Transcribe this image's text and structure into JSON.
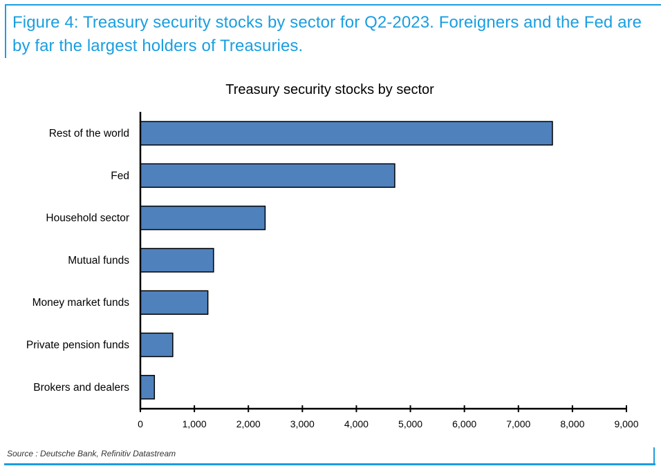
{
  "figure": {
    "caption": "Figure 4: Treasury security stocks by sector for Q2-2023. Foreigners and the Fed are by far the largest holders of Treasuries.",
    "source": "Source : Deutsche Bank, Refinitiv Datastream",
    "accent_color": "#1a9ee0"
  },
  "chart_data": {
    "type": "bar",
    "orientation": "horizontal",
    "title": "Treasury security stocks by sector",
    "xlabel": "",
    "ylabel": "",
    "categories": [
      "Rest of the world",
      "Fed",
      "Household sector",
      "Mutual funds",
      "Money market funds",
      "Private pension funds",
      "Brokers and dealers"
    ],
    "values": [
      7630,
      4710,
      2310,
      1355,
      1250,
      600,
      260
    ],
    "xlim": [
      0,
      9000
    ],
    "x_ticks": [
      "0",
      "1,000",
      "2,000",
      "3,000",
      "4,000",
      "5,000",
      "6,000",
      "7,000",
      "8,000",
      "9,000"
    ],
    "grid": false,
    "legend": "none",
    "bar_color": "#4f81bd"
  }
}
